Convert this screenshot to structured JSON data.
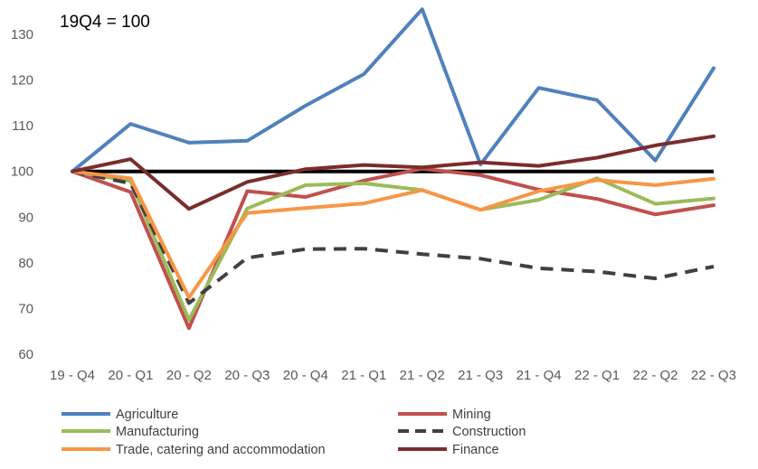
{
  "chart_data": {
    "type": "line",
    "annotation": "19Q4 = 100",
    "categories": [
      "19 - Q4",
      "20 - Q1",
      "20 - Q2",
      "20 - Q3",
      "20 - Q4",
      "21 - Q1",
      "21 - Q2",
      "21 - Q3",
      "21 - Q4",
      "22 - Q1",
      "22 - Q2",
      "22 - Q3"
    ],
    "ylim": [
      60,
      130
    ],
    "yticks": [
      60,
      70,
      80,
      90,
      100,
      110,
      120,
      130
    ],
    "grid": false,
    "legend_position": "bottom",
    "baseline": 100,
    "series": [
      {
        "name": "Agriculture",
        "color": "#4f81bd",
        "dash": "solid",
        "values": [
          100,
          110.4,
          106.3,
          106.7,
          114.4,
          121.3,
          135.5,
          101.5,
          118.3,
          115.6,
          102.4,
          122.6
        ]
      },
      {
        "name": "Mining",
        "color": "#c0504d",
        "dash": "solid",
        "values": [
          100,
          95.5,
          65.7,
          95.7,
          94.4,
          98.0,
          100.6,
          99.2,
          96.0,
          94.0,
          90.6,
          92.6
        ]
      },
      {
        "name": "Manufacturing",
        "color": "#9bbb59",
        "dash": "solid",
        "values": [
          100,
          97.9,
          67.5,
          91.9,
          97.0,
          97.4,
          95.9,
          91.6,
          93.8,
          98.5,
          92.9,
          94.1
        ]
      },
      {
        "name": "Construction",
        "color": "#404040",
        "dash": "dashed",
        "values": [
          100,
          97.4,
          71.2,
          81.1,
          83.0,
          83.1,
          81.9,
          80.9,
          78.8,
          78.1,
          76.6,
          79.2
        ]
      },
      {
        "name": "Trade, catering and accommodation",
        "color": "#f79646",
        "dash": "solid",
        "values": [
          100,
          98.5,
          72.4,
          90.9,
          92.0,
          93.0,
          95.9,
          91.6,
          95.7,
          98.1,
          97.0,
          98.4
        ]
      },
      {
        "name": "Finance",
        "color": "#7b2c2c",
        "dash": "solid",
        "values": [
          100,
          102.7,
          91.8,
          97.7,
          100.5,
          101.4,
          100.9,
          102.0,
          101.2,
          103.0,
          105.7,
          107.7
        ]
      }
    ]
  }
}
